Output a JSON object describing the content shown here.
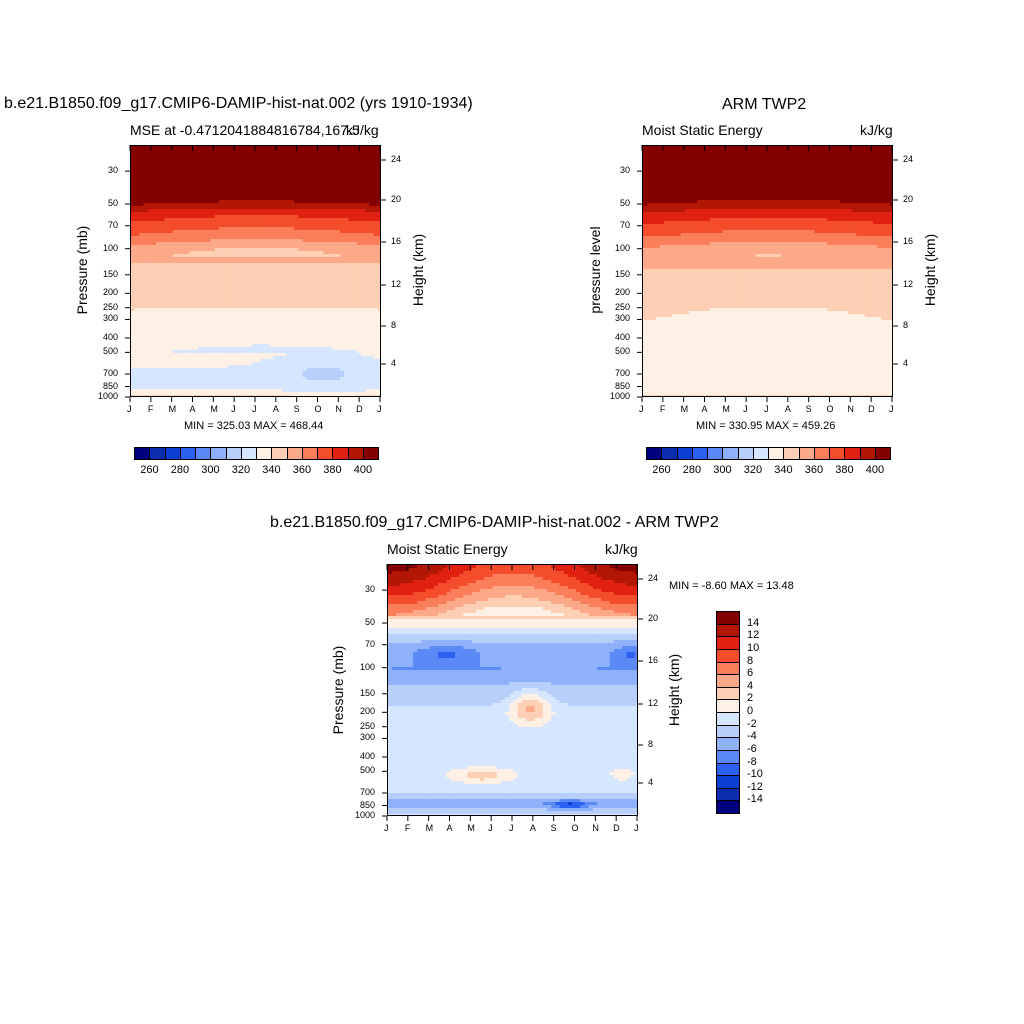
{
  "palette": [
    "#00007f",
    "#0a2db0",
    "#0e3fd4",
    "#2b60f0",
    "#5b8af7",
    "#8fb1fa",
    "#b8cffc",
    "#d6e6fe",
    "#fff0e6",
    "#fdd0b5",
    "#fca98a",
    "#fa7e5a",
    "#f44d2c",
    "#e02010",
    "#b21706",
    "#840000"
  ],
  "month_ticks": [
    "J",
    "F",
    "M",
    "A",
    "M",
    "J",
    "J",
    "A",
    "S",
    "O",
    "N",
    "D",
    "J"
  ],
  "pressure_ticks": [
    "30",
    "50",
    "70",
    "100",
    "150",
    "200",
    "250",
    "300",
    "400",
    "500",
    "700",
    "850",
    "1000"
  ],
  "height_ticks": [
    "24",
    "20",
    "16",
    "12",
    "8",
    "4"
  ],
  "panels": {
    "top_left": {
      "main_title": "b.e21.B1850.f09_g17.CMIP6-DAMIP-hist-nat.002 (yrs 1910-1934)",
      "left_title": "MSE at -0.4712041884816784,167.5",
      "right_title": "kJ/kg",
      "y_label": "Pressure (mb)",
      "right_axis_label": "Height (km)",
      "min_max": "MIN = 325.03 MAX = 468.44",
      "labelbar": [
        "260",
        "280",
        "300",
        "320",
        "340",
        "360",
        "380",
        "400"
      ]
    },
    "top_right": {
      "main_title": "ARM TWP2",
      "left_title": "Moist Static Energy",
      "right_title": "kJ/kg",
      "y_label": "pressure level",
      "right_axis_label": "Height (km)",
      "min_max": "MIN = 330.95 MAX = 459.26",
      "labelbar": [
        "260",
        "280",
        "300",
        "320",
        "340",
        "360",
        "380",
        "400"
      ]
    },
    "bottom": {
      "main_title": "b.e21.B1850.f09_g17.CMIP6-DAMIP-hist-nat.002 - ARM TWP2",
      "left_title": "Moist Static Energy",
      "right_title": "kJ/kg",
      "y_label": "Pressure (mb)",
      "right_axis_label": "Height (km)",
      "min_max": "MIN =  -8.60 MAX =  13.48",
      "labelbar": [
        "14",
        "12",
        "10",
        "8",
        "6",
        "4",
        "2",
        "0",
        "-2",
        "-4",
        "-6",
        "-8",
        "-10",
        "-12",
        "-14"
      ]
    }
  },
  "chart_data": [
    {
      "type": "heatmap",
      "title": "b.e21.B1850.f09_g17.CMIP6-DAMIP-hist-nat.002 (yrs 1910-1934)",
      "variable": "MSE at -0.4712041884816784,167.5",
      "units": "kJ/kg",
      "x": [
        "J",
        "F",
        "M",
        "A",
        "M",
        "J",
        "J",
        "A",
        "S",
        "O",
        "N",
        "D",
        "J"
      ],
      "ylabel": "Pressure (mb)",
      "y_scale": "log",
      "ylim": [
        1000,
        20
      ],
      "min": 325.03,
      "max": 468.44,
      "levels": [
        260,
        270,
        280,
        290,
        300,
        310,
        320,
        330,
        340,
        350,
        360,
        370,
        380,
        390,
        400
      ],
      "profile": {
        "p": [
          20,
          40,
          55,
          65,
          80,
          100,
          150,
          300,
          500,
          850,
          950,
          1000
        ],
        "mse": [
          460,
          420,
          390,
          380,
          370,
          355,
          345,
          338,
          331,
          328,
          335,
          345
        ]
      }
    },
    {
      "type": "heatmap",
      "title": "ARM TWP2",
      "variable": "Moist Static Energy",
      "units": "kJ/kg",
      "x": [
        "J",
        "F",
        "M",
        "A",
        "M",
        "J",
        "J",
        "A",
        "S",
        "O",
        "N",
        "D",
        "J"
      ],
      "ylabel": "pressure level",
      "y_scale": "log",
      "ylim": [
        1000,
        20
      ],
      "min": 330.95,
      "max": 459.26,
      "levels": [
        260,
        270,
        280,
        290,
        300,
        310,
        320,
        330,
        340,
        350,
        360,
        370,
        380,
        390,
        400
      ],
      "profile": {
        "p": [
          20,
          40,
          55,
          65,
          80,
          100,
          150,
          300,
          500,
          850,
          950,
          1000
        ],
        "mse": [
          455,
          415,
          392,
          382,
          372,
          358,
          347,
          340,
          334,
          333,
          338,
          345
        ]
      }
    },
    {
      "type": "heatmap",
      "title": "b.e21.B1850.f09_g17.CMIP6-DAMIP-hist-nat.002 - ARM TWP2",
      "variable": "Moist Static Energy",
      "units": "kJ/kg",
      "x": [
        "J",
        "F",
        "M",
        "A",
        "M",
        "J",
        "J",
        "A",
        "S",
        "O",
        "N",
        "D",
        "J"
      ],
      "ylabel": "Pressure (mb)",
      "y_scale": "log",
      "ylim": [
        1000,
        20
      ],
      "min": -8.6,
      "max": 13.48,
      "levels": [
        -14,
        -12,
        -10,
        -8,
        -6,
        -4,
        -2,
        0,
        2,
        4,
        6,
        8,
        10,
        12,
        14
      ],
      "profile": {
        "p": [
          20,
          30,
          40,
          50,
          60,
          75,
          100,
          130,
          200,
          500,
          700,
          800,
          900,
          1000
        ],
        "diff": [
          12,
          8,
          4,
          1,
          -3,
          -5,
          -6,
          -4,
          -1,
          -1,
          -2,
          -5,
          -3,
          -1
        ]
      }
    }
  ]
}
